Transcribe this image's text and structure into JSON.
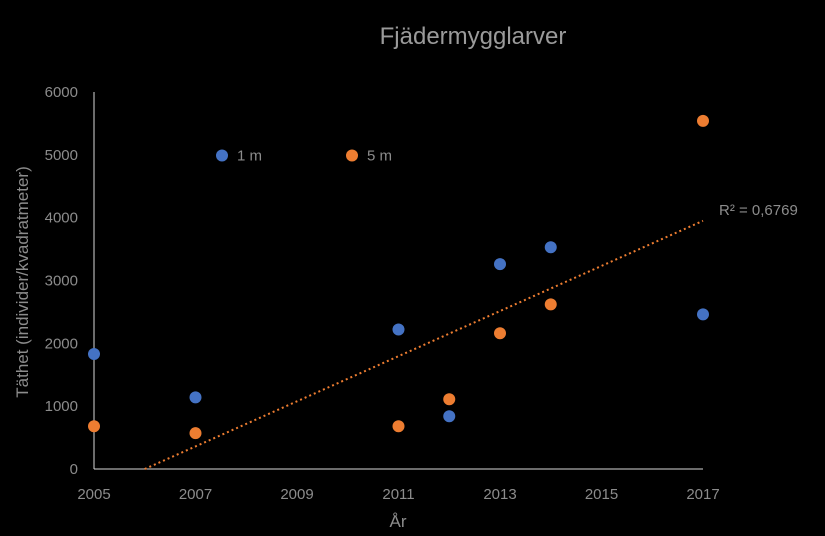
{
  "chart_data": {
    "type": "scatter",
    "title": "Fjädermygglarver",
    "xlabel": "År",
    "ylabel": "Täthet (individer/kvadratmeter)",
    "xlim": [
      2005,
      2017
    ],
    "ylim": [
      0,
      6000
    ],
    "x_ticks": [
      2005,
      2007,
      2009,
      2011,
      2013,
      2015,
      2017
    ],
    "y_ticks": [
      0,
      1000,
      2000,
      3000,
      4000,
      5000,
      6000
    ],
    "x_tick_labels": [
      "2005",
      "2007",
      "2009",
      "2011",
      "2013",
      "2015",
      "2017"
    ],
    "y_tick_labels": [
      "0",
      "1000",
      "2000",
      "3000",
      "4000",
      "5000",
      "6000"
    ],
    "grid": false,
    "legend_position": "top-left",
    "series": [
      {
        "name": "1 m",
        "color": "#4472C4",
        "points": [
          {
            "x": 2005,
            "y": 1830
          },
          {
            "x": 2007,
            "y": 1140
          },
          {
            "x": 2011,
            "y": 2220
          },
          {
            "x": 2012,
            "y": 840
          },
          {
            "x": 2013,
            "y": 3260
          },
          {
            "x": 2014,
            "y": 3530
          },
          {
            "x": 2017,
            "y": 2460
          }
        ]
      },
      {
        "name": "5 m",
        "color": "#ED7D31",
        "points": [
          {
            "x": 2005,
            "y": 680
          },
          {
            "x": 2007,
            "y": 570
          },
          {
            "x": 2011,
            "y": 680
          },
          {
            "x": 2012,
            "y": 1110
          },
          {
            "x": 2013,
            "y": 2160
          },
          {
            "x": 2014,
            "y": 2620
          },
          {
            "x": 2017,
            "y": 5540
          }
        ]
      }
    ],
    "trendline": {
      "type": "linear",
      "style": "dotted",
      "color": "#ED7D31",
      "start": {
        "x": 2006,
        "y": 0
      },
      "end": {
        "x": 2017,
        "y": 3950
      },
      "label": "R² = 0,6769"
    }
  }
}
